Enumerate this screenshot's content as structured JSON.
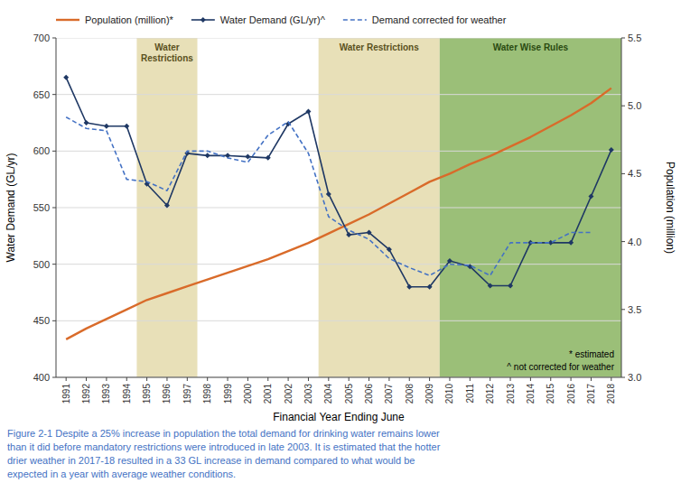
{
  "chart_data": {
    "type": "line",
    "xlabel": "Financial Year Ending June",
    "ylabel": "Water Demand (GL/yr)",
    "y2label": "Population (million)",
    "x": [
      1991,
      1992,
      1993,
      1994,
      1995,
      1996,
      1997,
      1998,
      1999,
      2000,
      2001,
      2002,
      2003,
      2004,
      2005,
      2006,
      2007,
      2008,
      2009,
      2010,
      2011,
      2012,
      2013,
      2014,
      2015,
      2016,
      2017,
      2018
    ],
    "series": [
      {
        "name": "Population (million)*",
        "color": "#D96B2A",
        "axis": "y2",
        "line_style": "solid",
        "values": [
          3.28,
          3.36,
          3.43,
          3.5,
          3.57,
          3.62,
          3.67,
          3.72,
          3.77,
          3.82,
          3.87,
          3.93,
          3.99,
          4.06,
          4.13,
          4.2,
          4.28,
          4.36,
          4.44,
          4.5,
          4.57,
          4.63,
          4.7,
          4.77,
          4.85,
          4.93,
          5.02,
          5.13
        ]
      },
      {
        "name": "Water Demand (GL/yr)^",
        "color": "#1F3864",
        "marker": "diamond",
        "line_style": "solid",
        "values": [
          665,
          625,
          622,
          622,
          571,
          552,
          598,
          596,
          596,
          595,
          594,
          624,
          635,
          562,
          526,
          528,
          513,
          480,
          480,
          503,
          498,
          481,
          481,
          519,
          519,
          519,
          560,
          601
        ]
      },
      {
        "name": "Demand corrected for weather",
        "color": "#4472C4",
        "line_style": "dashed",
        "values": [
          630,
          620,
          618,
          575,
          573,
          565,
          600,
          600,
          594,
          590,
          614,
          626,
          598,
          542,
          530,
          522,
          505,
          497,
          490,
          500,
          499,
          490,
          519,
          519,
          519,
          528,
          528,
          null
        ]
      }
    ],
    "regions": [
      {
        "label": "Water\nRestrictions",
        "start": 1994.5,
        "end": 1997.5,
        "color": "#E8E0B8",
        "label_color": "#5a5020"
      },
      {
        "label": "Water Restrictions",
        "start": 2003.5,
        "end": 2009.5,
        "color": "#E8E0B8",
        "label_color": "#5a5020"
      },
      {
        "label": "Water Wise Rules",
        "start": 2009.5,
        "end": 2018.5,
        "color": "#9BBF78",
        "label_color": "#2a4a10"
      }
    ],
    "notes": [
      "* estimated",
      "^ not corrected for weather"
    ],
    "caption": "Figure 2-1 Despite a 25% increase in population the total demand for drinking water remains lower\nthan it did before mandatory restrictions were introduced in late 2003. It is estimated that the hotter\ndrier weather in 2017-18 resulted in a 33 GL increase in demand compared to what would be\nexpected in a year with average weather conditions.",
    "caption_color": "#4472C4",
    "xlim": [
      1990.5,
      2018.5
    ],
    "xticks": [
      1991,
      1992,
      1993,
      1994,
      1995,
      1996,
      1997,
      1998,
      1999,
      2000,
      2001,
      2002,
      2003,
      2004,
      2005,
      2006,
      2007,
      2008,
      2009,
      2010,
      2011,
      2012,
      2013,
      2014,
      2015,
      2016,
      2017,
      2018
    ],
    "ylim": [
      400,
      700
    ],
    "yticks": [
      400,
      450,
      500,
      550,
      600,
      650,
      700
    ],
    "y2lim": [
      3.0,
      5.5
    ],
    "y2ticks": [
      {
        "value": 3.0,
        "label": "3.0"
      },
      3.5,
      {
        "value": 4.0,
        "label": "4.0"
      },
      4.5,
      {
        "value": 5.0,
        "label": "5.0"
      },
      5.5
    ],
    "grid": true,
    "legend": "top"
  }
}
